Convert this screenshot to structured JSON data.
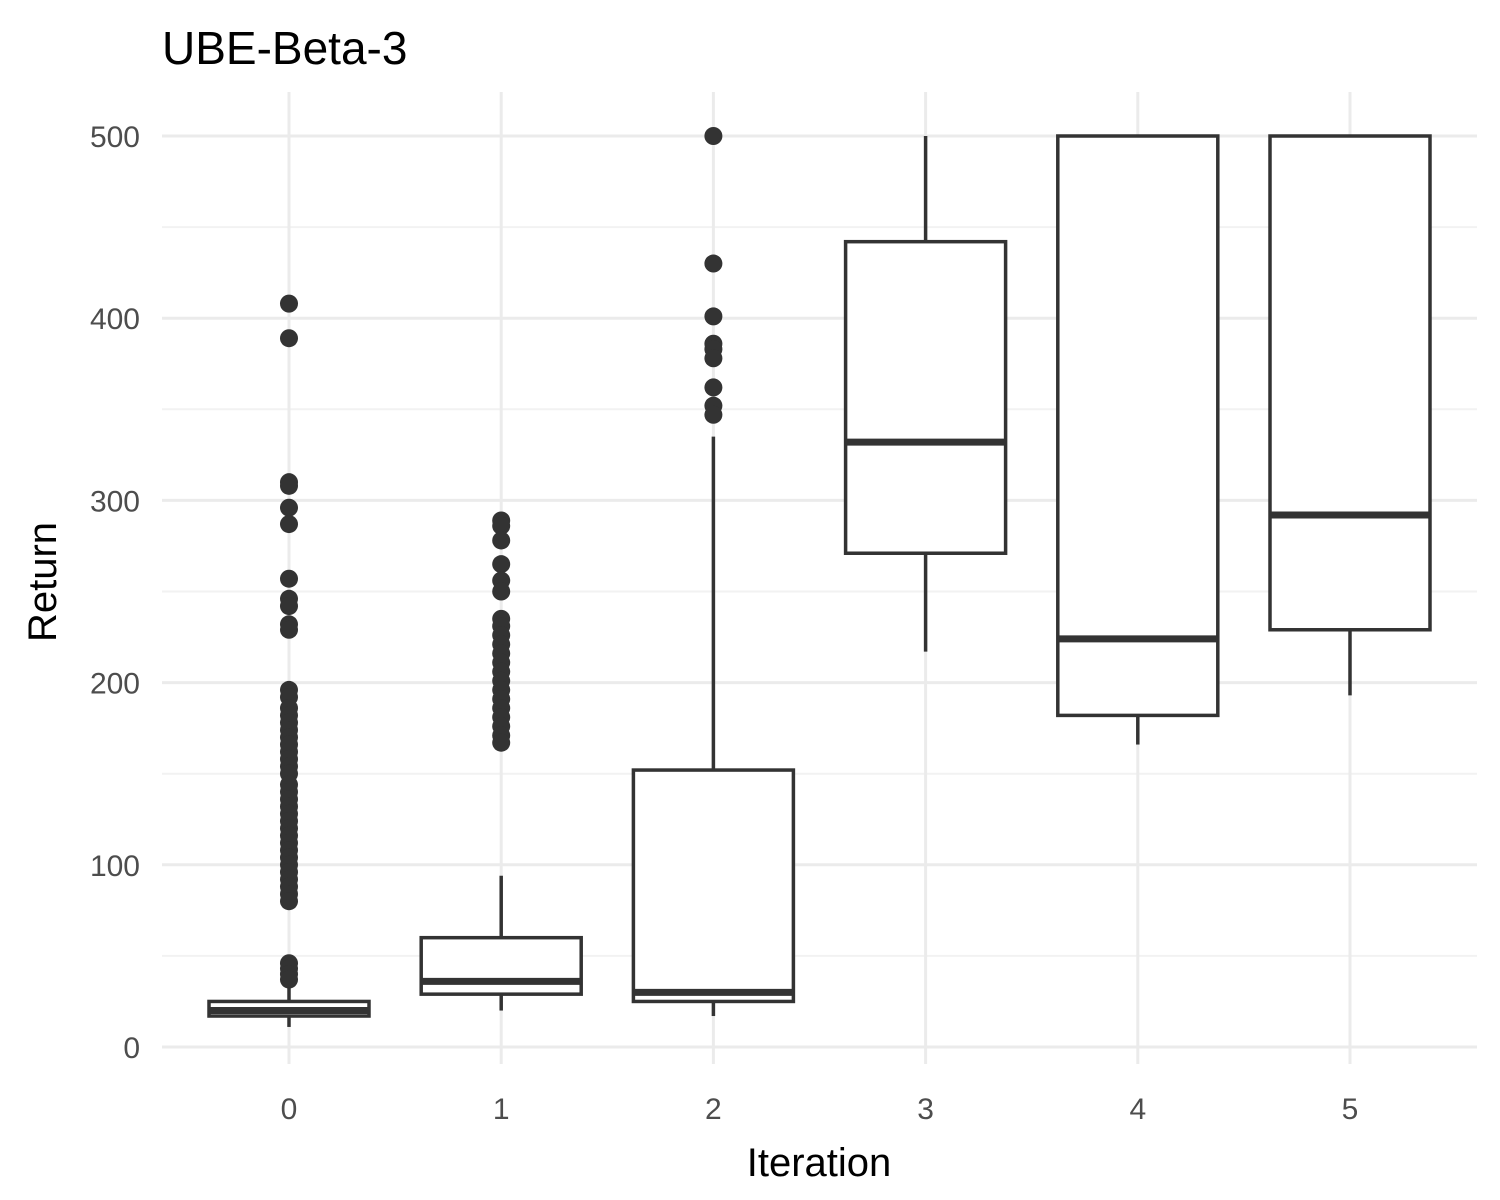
{
  "chart_data": {
    "type": "boxplot",
    "title": "UBE-Beta-3",
    "xlabel": "Iteration",
    "ylabel": "Return",
    "ylim": [
      -8,
      523
    ],
    "y_major_ticks": [
      0,
      100,
      200,
      300,
      400,
      500
    ],
    "y_minor_ticks": [
      50,
      150,
      250,
      350,
      450
    ],
    "grid": true,
    "categories": [
      "0",
      "1",
      "2",
      "3",
      "4",
      "5"
    ],
    "boxes": [
      {
        "category": "0",
        "whisker_low": 11,
        "q1": 17,
        "median": 20,
        "q3": 25,
        "whisker_high": 34,
        "outliers": [
          408,
          389,
          310,
          308,
          296,
          287,
          257,
          246,
          242,
          232,
          229,
          196,
          192,
          186,
          182,
          178,
          174,
          170,
          166,
          162,
          158,
          154,
          150,
          144,
          140,
          136,
          132,
          128,
          124,
          120,
          116,
          112,
          108,
          104,
          100,
          96,
          92,
          88,
          84,
          80,
          46,
          43,
          40,
          37
        ]
      },
      {
        "category": "1",
        "whisker_low": 20,
        "q1": 29,
        "median": 36,
        "q3": 60,
        "whisker_high": 94,
        "outliers": [
          289,
          286,
          278,
          265,
          256,
          250,
          235,
          231,
          226,
          221,
          216,
          211,
          206,
          201,
          196,
          191,
          186,
          181,
          176,
          171,
          167
        ]
      },
      {
        "category": "2",
        "whisker_low": 17,
        "q1": 25,
        "median": 30,
        "q3": 152,
        "whisker_high": 335,
        "outliers": [
          500,
          430,
          401,
          386,
          383,
          378,
          362,
          352,
          347
        ]
      },
      {
        "category": "3",
        "whisker_low": 217,
        "q1": 271,
        "median": 332,
        "q3": 442,
        "whisker_high": 500,
        "outliers": []
      },
      {
        "category": "4",
        "whisker_low": 166,
        "q1": 182,
        "median": 224,
        "q3": 500,
        "whisker_high": 500,
        "outliers": []
      },
      {
        "category": "5",
        "whisker_low": 193,
        "q1": 229,
        "median": 292,
        "q3": 500,
        "whisker_high": 500,
        "outliers": []
      }
    ]
  }
}
